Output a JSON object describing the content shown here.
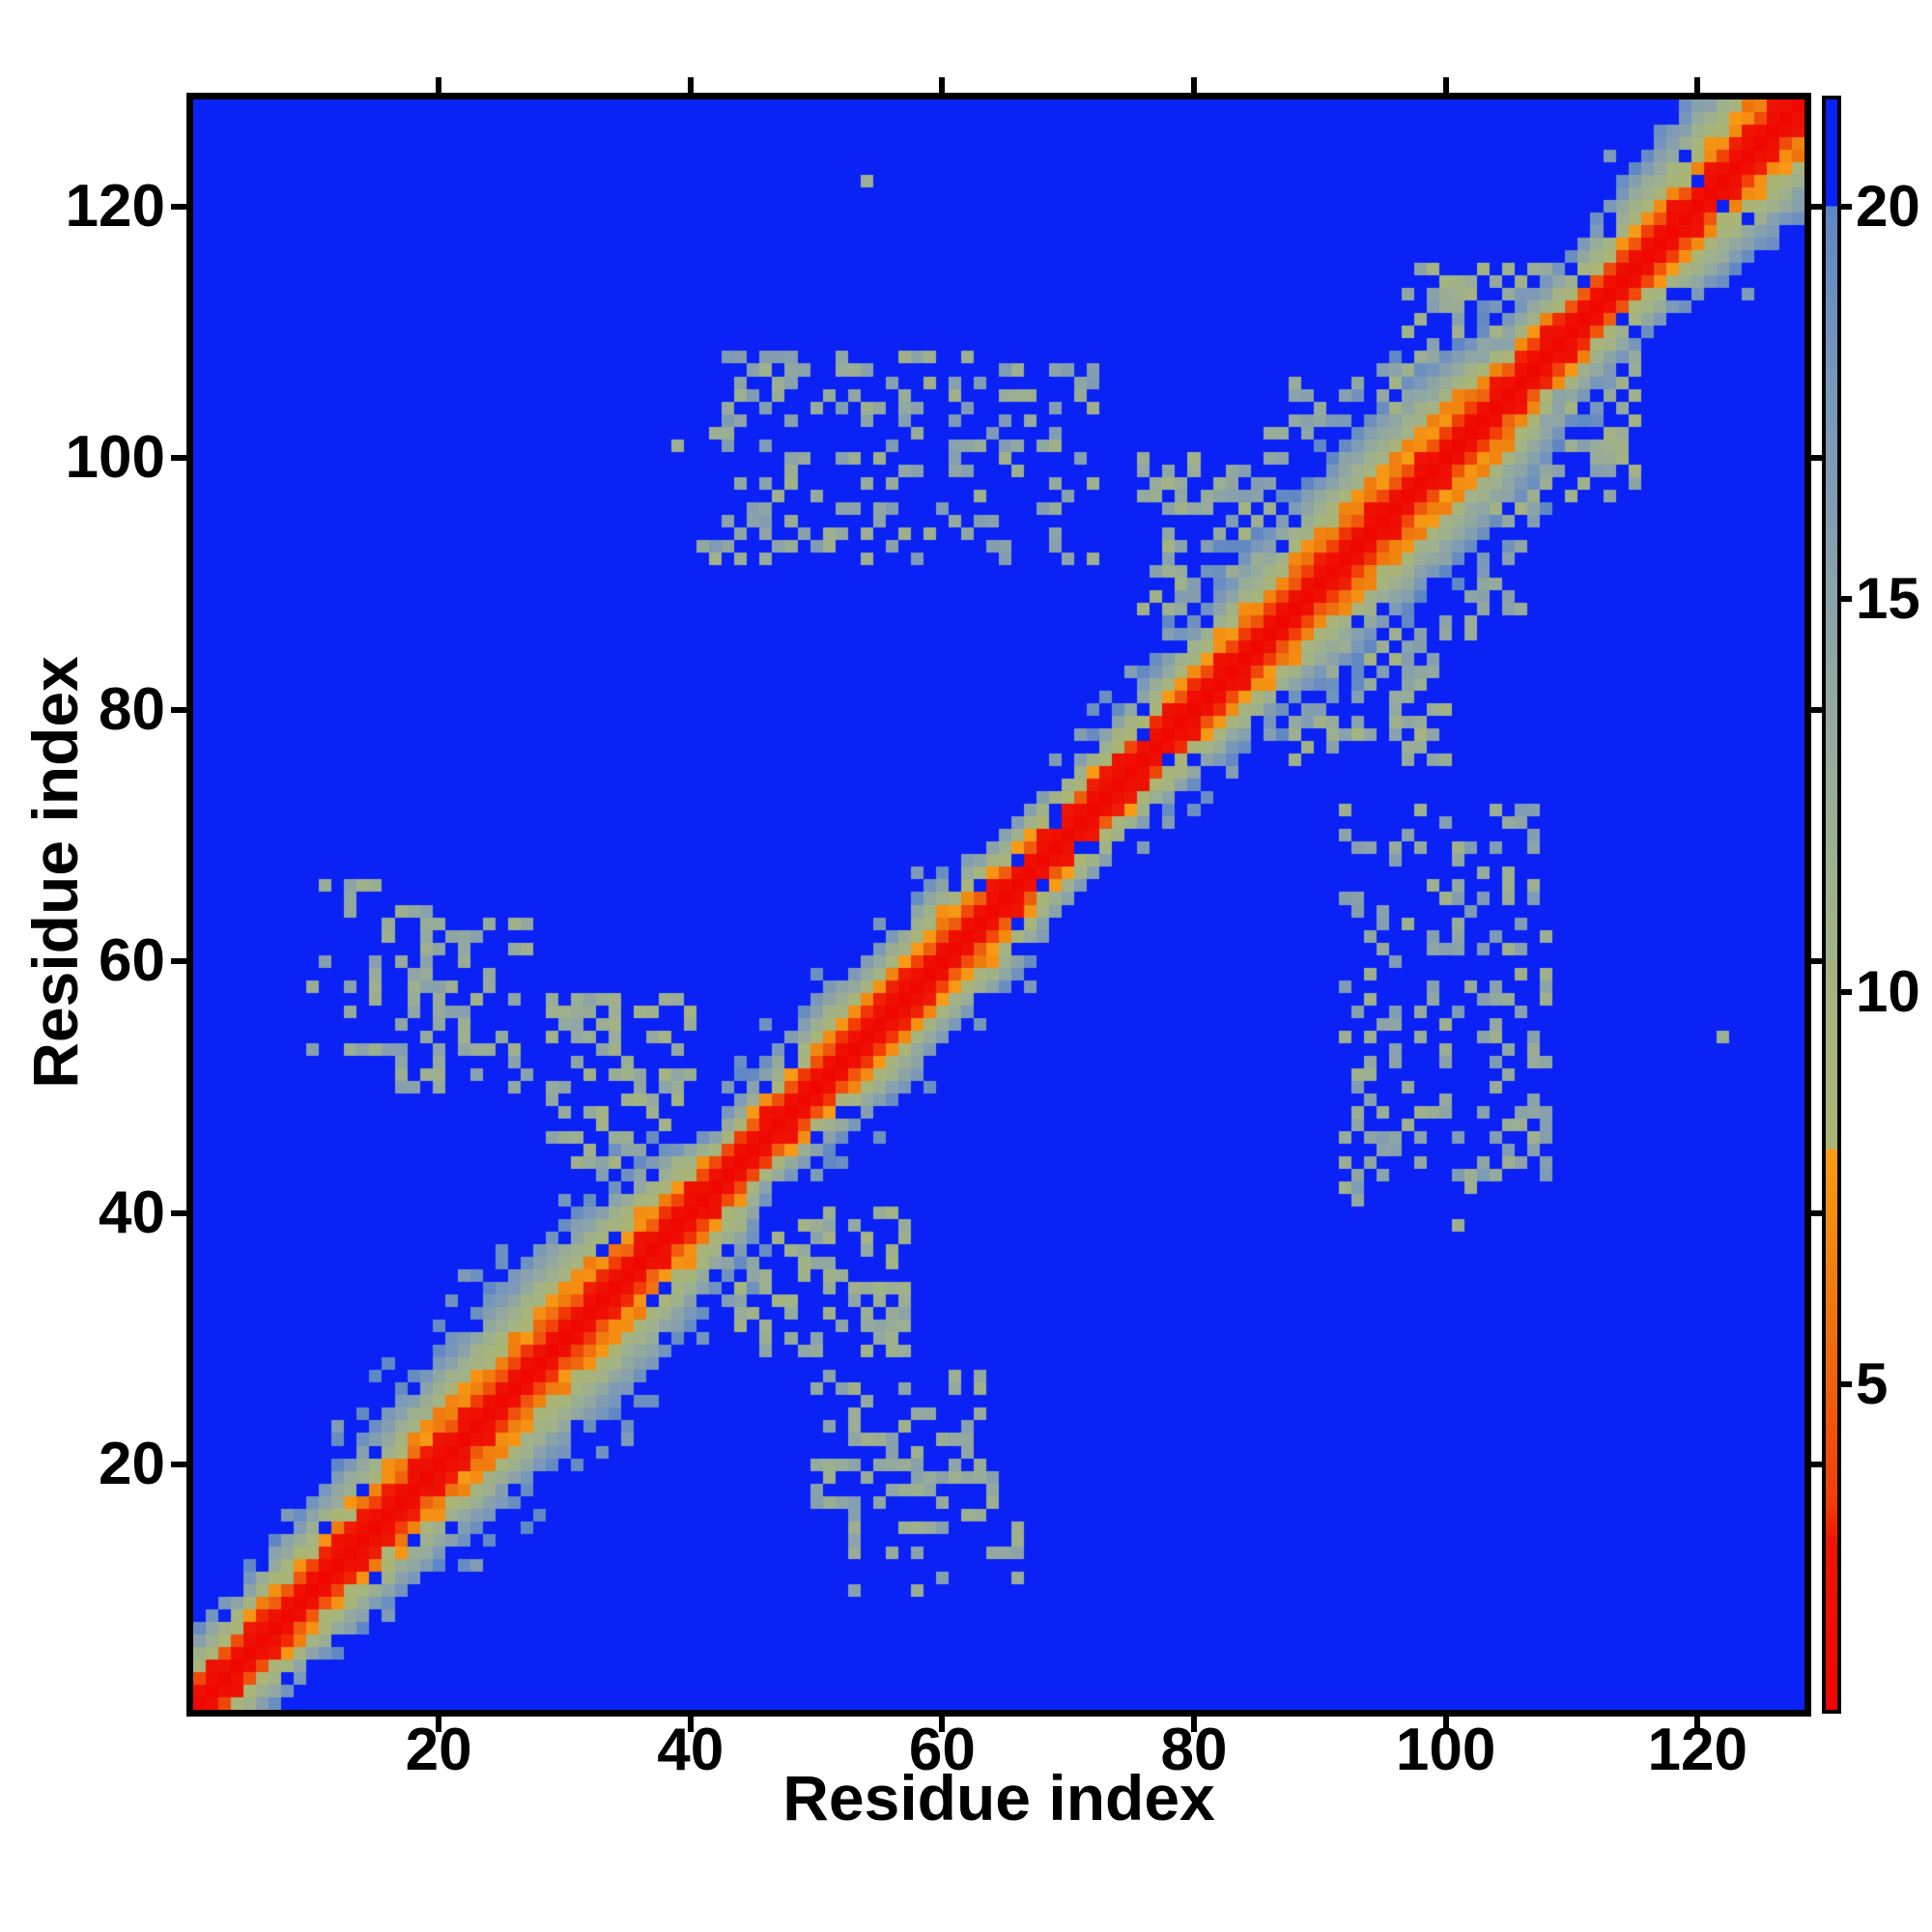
{
  "figure": {
    "background": "#ffffff",
    "border_color": "#000000"
  },
  "chart_data": {
    "type": "heatmap",
    "title": "",
    "xlabel": "Residue index",
    "ylabel": "Residue index",
    "x_range": [
      0.5,
      128.5
    ],
    "y_range": [
      0.5,
      128.5
    ],
    "x_ticks": [
      20,
      40,
      60,
      80,
      100,
      120
    ],
    "y_ticks": [
      20,
      40,
      60,
      80,
      100,
      120
    ],
    "grid": false,
    "n": 128,
    "background_value_color": "#0a22f5",
    "colorbar": {
      "position": "right",
      "vmin": 0.86,
      "vmax": 21.36,
      "ticks": [
        5,
        10,
        15,
        20
      ]
    },
    "colormap": {
      "stops": [
        [
          0.86,
          "#f00500"
        ],
        [
          3.0,
          "#ee1402"
        ],
        [
          3.5,
          "#f13c06"
        ],
        [
          5.0,
          "#ef610e"
        ],
        [
          6.5,
          "#f0800e"
        ],
        [
          8.0,
          "#f89c15"
        ],
        [
          8.0,
          "#abb573"
        ],
        [
          10.5,
          "#a3b384"
        ],
        [
          13.0,
          "#96ab9b"
        ],
        [
          15.5,
          "#87a0ae"
        ],
        [
          18.0,
          "#7595bd"
        ],
        [
          20.0,
          "#5d86c5"
        ],
        [
          20.0,
          "#0a22f5"
        ],
        [
          21.36,
          "#0a22f5"
        ]
      ]
    },
    "matrix_model": {
      "description": "Symmetric 128x128 residue-residue distance map: red diagonal core, orange helix band, pale-green/steel fringe, blue background, speckled tertiary-contact clusters",
      "seed": 42,
      "diag_value": 1.2,
      "near_diag_value": 2.3,
      "base": 4.2,
      "scale": 16.8,
      "exponent": 1.15,
      "noise": 2.2,
      "checker_threshold": 8.2,
      "band_profile": [
        [
          1,
          6
        ],
        [
          8,
          7
        ],
        [
          14,
          8
        ],
        [
          22,
          9.5
        ],
        [
          32,
          10.5
        ],
        [
          40,
          9
        ],
        [
          44,
          5
        ],
        [
          48,
          6.5
        ],
        [
          54,
          8
        ],
        [
          58,
          7
        ],
        [
          62,
          8
        ],
        [
          68,
          6
        ],
        [
          74,
          6
        ],
        [
          79,
          7
        ],
        [
          84,
          8
        ],
        [
          90,
          9.5
        ],
        [
          97,
          10
        ],
        [
          103,
          9.5
        ],
        [
          108,
          7
        ],
        [
          113,
          6.5
        ],
        [
          118,
          8.5
        ],
        [
          124,
          10
        ],
        [
          128,
          10.5
        ]
      ],
      "hole_regions": [
        [
          5,
          18,
          0.08
        ],
        [
          64,
          84,
          0.08
        ],
        [
          106,
          116,
          0.07
        ]
      ],
      "fringe": {
        "limit": 1.3,
        "speckle_p": 0.18,
        "v": [
          16,
          20
        ]
      },
      "clusters": [
        {
          "i": [
            41,
            72
          ],
          "j": [
            92,
            108
          ],
          "density": 0.26,
          "v": [
            11,
            17
          ]
        },
        {
          "i": [
            76,
            86
          ],
          "j": [
            88,
            100
          ],
          "density": 0.42,
          "v": [
            10,
            16
          ]
        },
        {
          "i": [
            17,
            27
          ],
          "j": [
            50,
            63
          ],
          "density": 0.3,
          "v": [
            11,
            16
          ]
        },
        {
          "i": [
            29,
            40
          ],
          "j": [
            44,
            57
          ],
          "density": 0.42,
          "v": [
            10,
            15
          ]
        },
        {
          "i": [
            10,
            21
          ],
          "j": [
            52,
            66
          ],
          "density": 0.25,
          "v": [
            11,
            16
          ]
        },
        {
          "i": [
            97,
            108
          ],
          "j": [
            105,
            115
          ],
          "density": 0.4,
          "v": [
            10,
            16
          ]
        },
        {
          "i": [
            86,
            96
          ],
          "j": [
            99,
            107
          ],
          "density": 0.3,
          "v": [
            10,
            16
          ]
        }
      ],
      "spots": [
        [
          54,
          122,
          12
        ],
        [
          39,
          101,
          12
        ]
      ]
    }
  }
}
